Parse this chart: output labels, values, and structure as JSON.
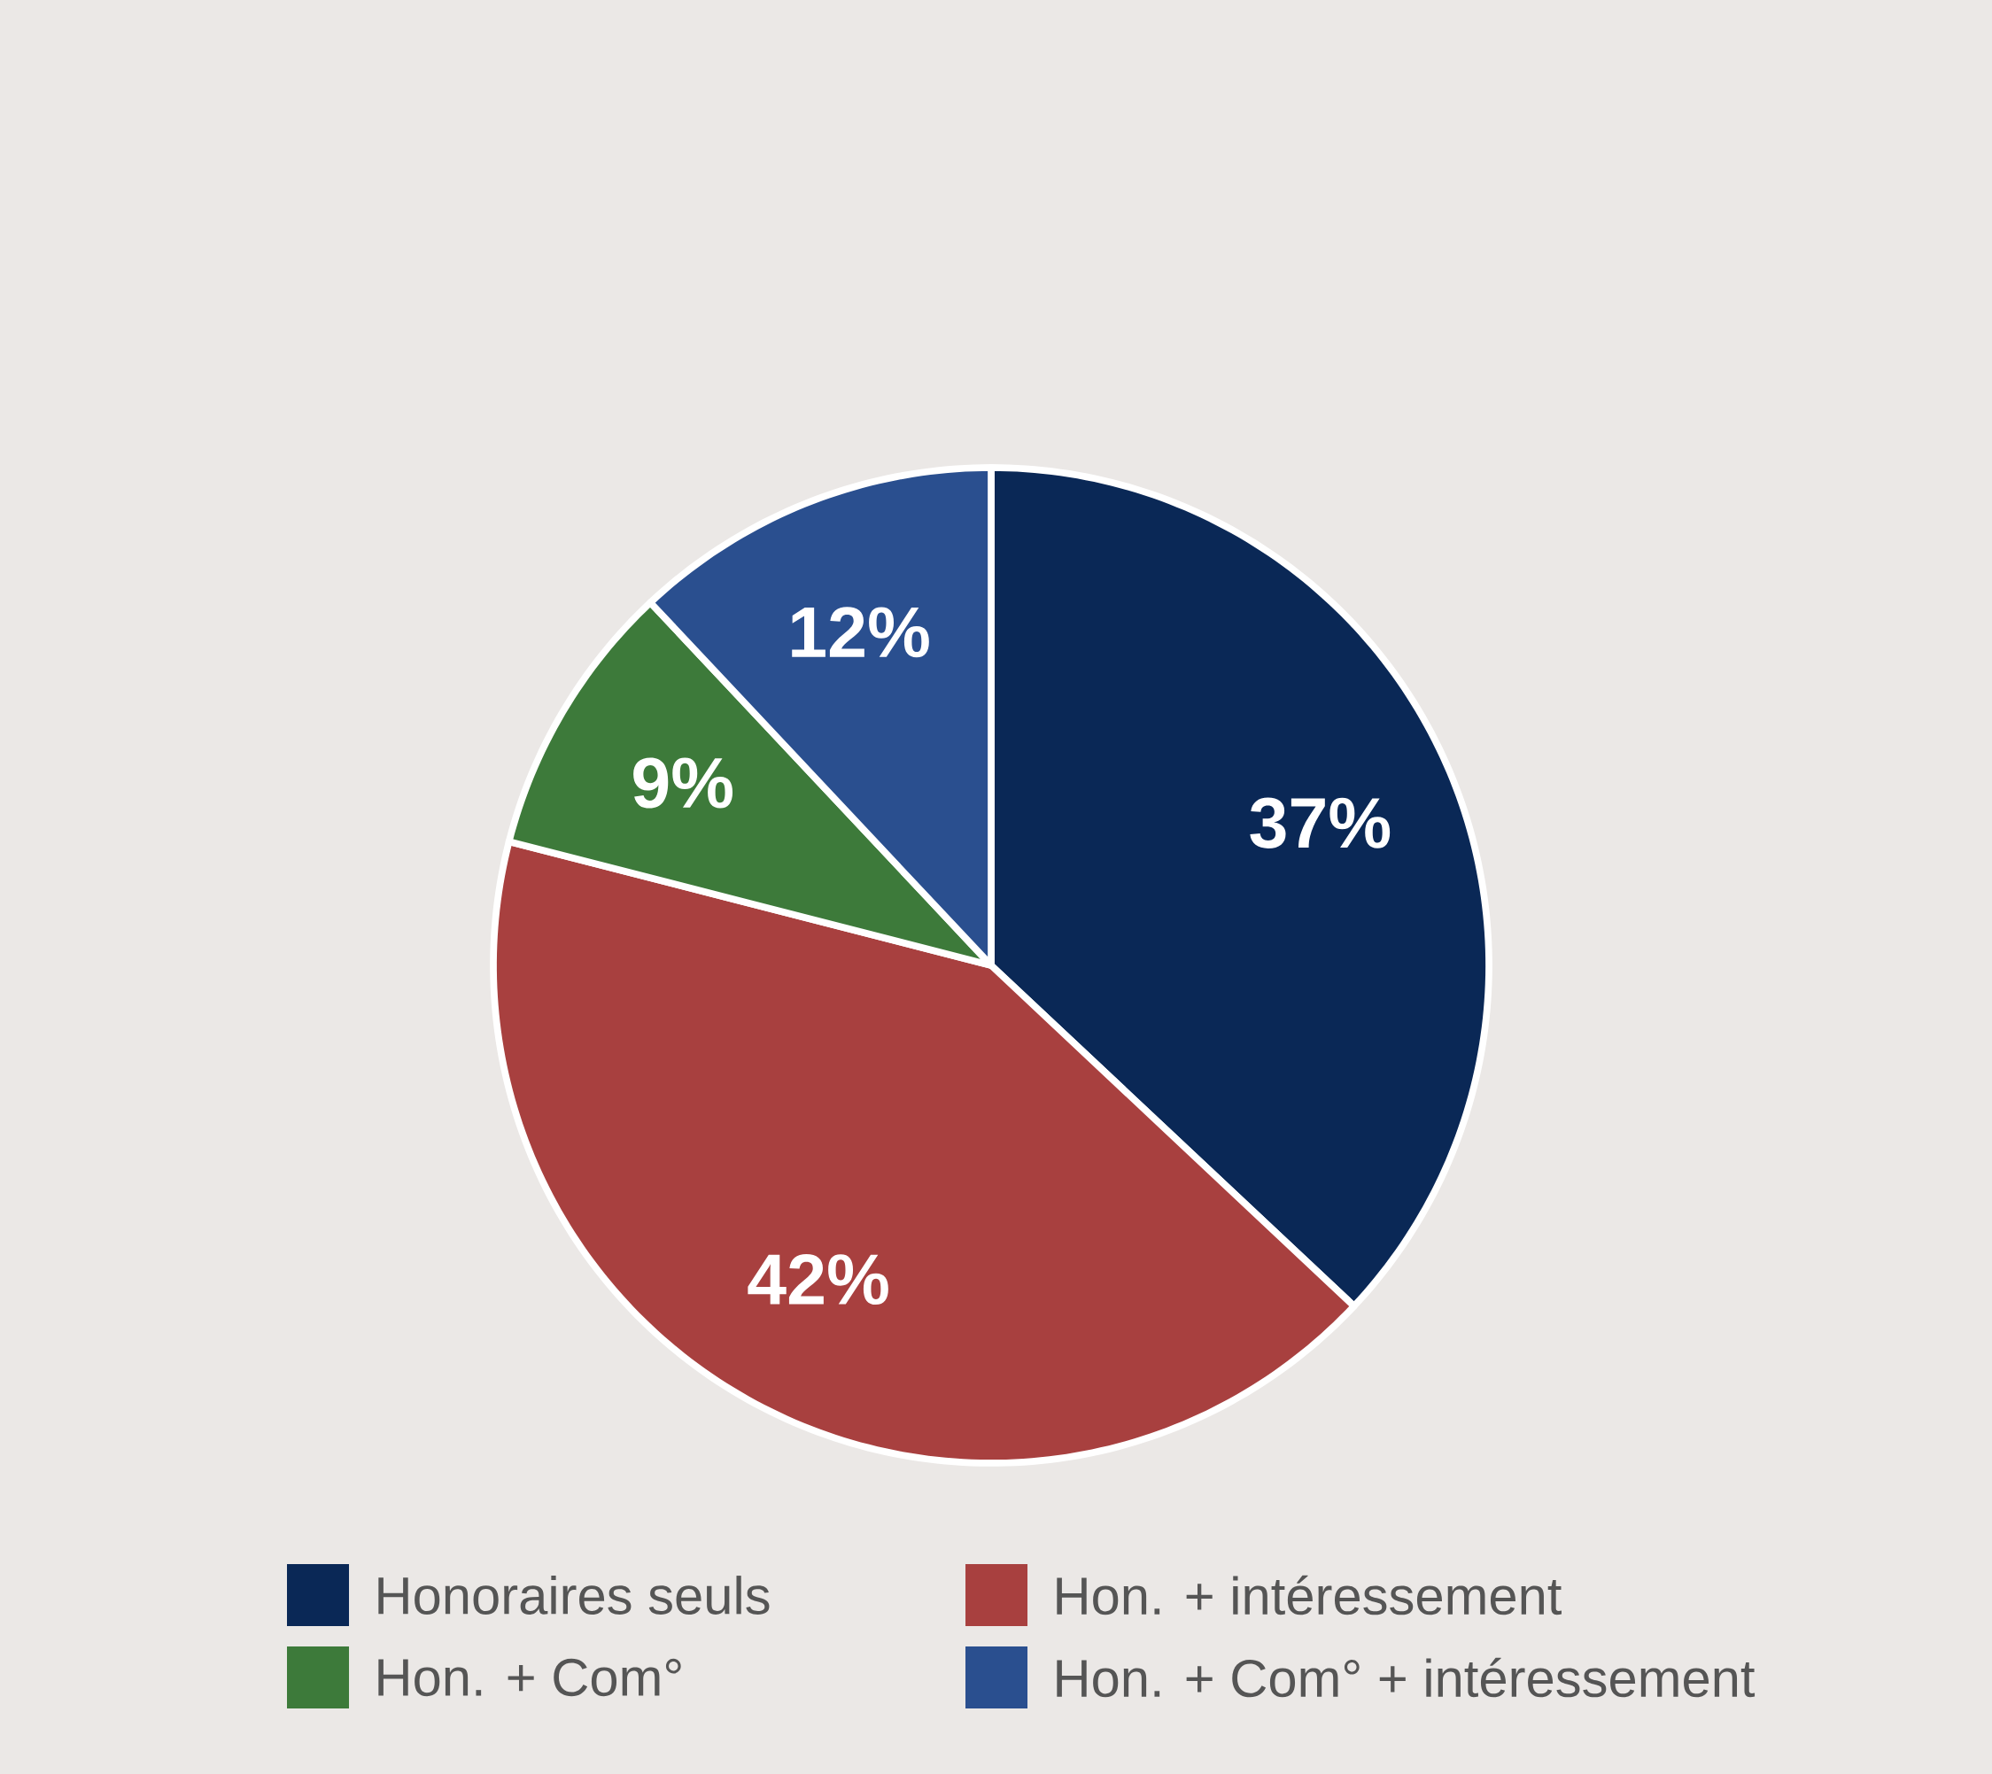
{
  "chart_data": {
    "type": "pie",
    "categories": [
      "Honoraires seuls",
      "Hon. + intéressement",
      "Hon. + Com°",
      "Hon. + Com° + intéressement"
    ],
    "values": [
      37,
      42,
      9,
      12
    ],
    "value_labels": [
      "37%",
      "42%",
      "9%",
      "12%"
    ],
    "colors": [
      "#0a2856",
      "#a8403f",
      "#3d7a3a",
      "#2a4f8f"
    ],
    "legend": "bottom"
  }
}
